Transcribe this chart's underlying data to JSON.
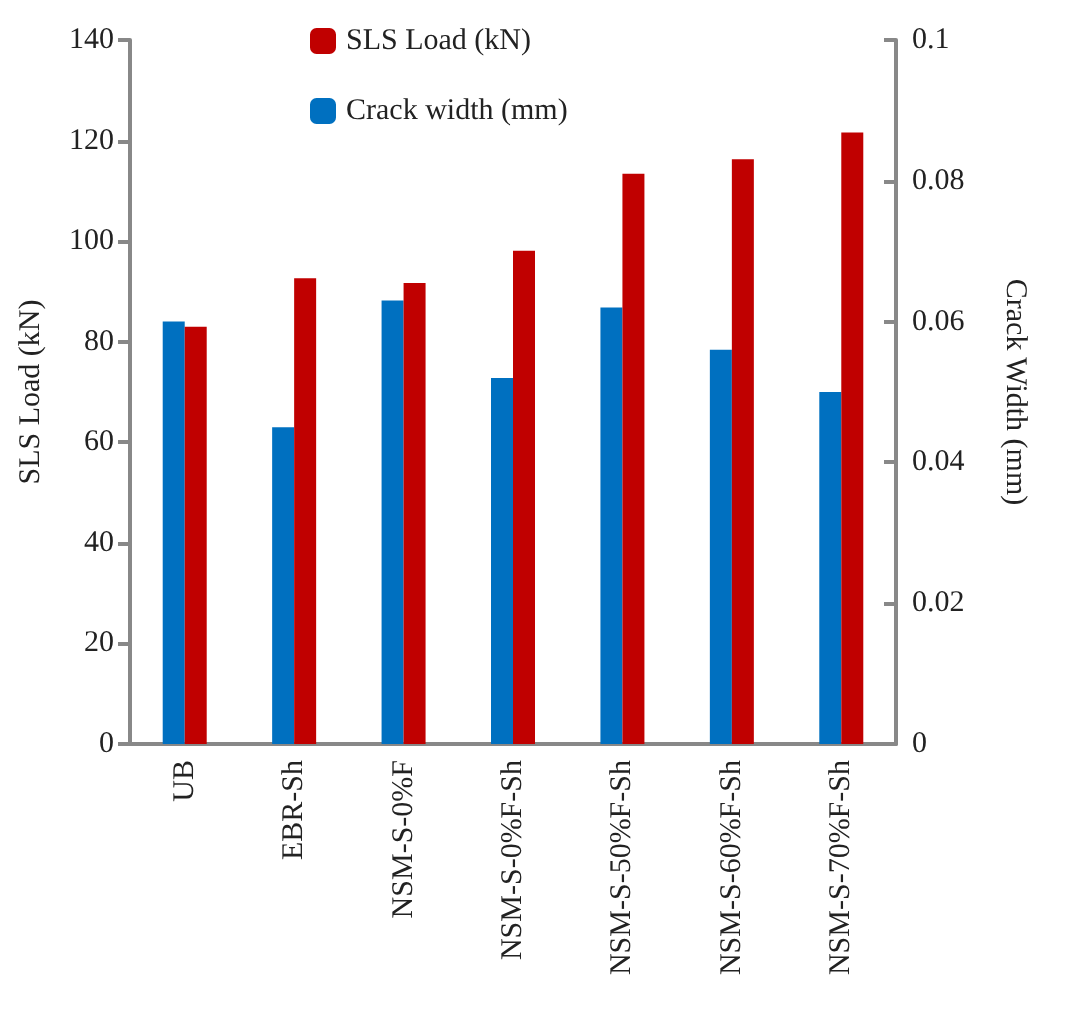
{
  "chart_data": {
    "type": "bar",
    "categories": [
      "UB",
      "EBR-Sh",
      "NSM-S-0%F",
      "NSM-S-0%F-Sh",
      "NSM-S-50%F-Sh",
      "NSM-S-60%F-Sh",
      "NSM-S-70%F-Sh"
    ],
    "series": [
      {
        "name": "Crack width (mm)",
        "color": "#0070c0",
        "axis": "y2",
        "values": [
          0.06,
          0.045,
          0.063,
          0.052,
          0.062,
          0.056,
          0.05
        ]
      },
      {
        "name": "SLS Load (kN)",
        "color": "#c00000",
        "values": [
          83,
          92.6,
          91.7,
          98.1,
          113.4,
          116.3,
          121.6
        ]
      }
    ],
    "ylabel": "SLS Load (kN)",
    "y2label": "Crack Width (mm)",
    "ylim": [
      0,
      140
    ],
    "yticks": [
      0,
      20,
      40,
      60,
      80,
      100,
      120,
      140
    ],
    "y2lim": [
      0,
      0.1
    ],
    "y2ticks": [
      0,
      0.02,
      0.04,
      0.06,
      0.08,
      0.1
    ],
    "grid": false,
    "legend": "top"
  }
}
